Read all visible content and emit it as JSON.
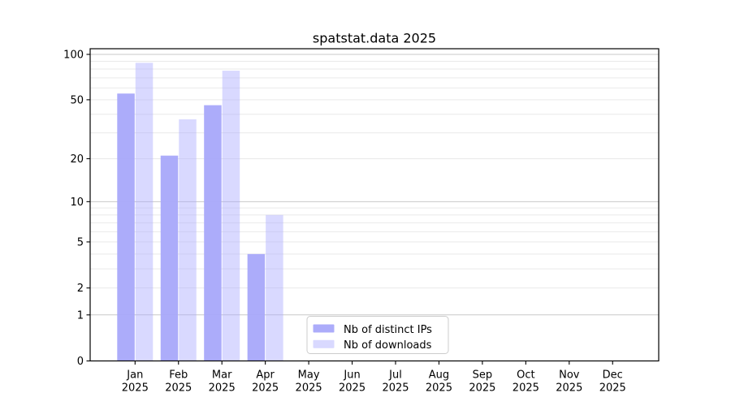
{
  "figure": {
    "title": "spatstat.data 2025"
  },
  "chart_data": {
    "type": "bar",
    "title": "spatstat.data 2025",
    "xlabel": "",
    "ylabel": "",
    "yscale": "log1p",
    "ylim": [
      0,
      100
    ],
    "grid": true,
    "legend_position": "lower center",
    "categories": [
      "Jan",
      "Feb",
      "Mar",
      "Apr",
      "May",
      "Jun",
      "Jul",
      "Aug",
      "Sep",
      "Oct",
      "Nov",
      "Dec"
    ],
    "category_year": "2025",
    "series": [
      {
        "name": "Nb of distinct IPs",
        "color": "#a8a8fa",
        "fill_opacity": 0.95,
        "values": [
          55,
          21,
          46,
          4,
          null,
          null,
          null,
          null,
          null,
          null,
          null,
          null
        ]
      },
      {
        "name": "Nb of downloads",
        "color": "#aaaaff",
        "fill_opacity": 0.45,
        "values": [
          88,
          37,
          78,
          8,
          null,
          null,
          null,
          null,
          null,
          null,
          null,
          null
        ]
      }
    ],
    "ytick_labels": [
      "100",
      "50",
      "20",
      "10",
      "5",
      "2",
      "1",
      "0"
    ],
    "major_gridlines": [
      1,
      10,
      100
    ],
    "minor_gridlines": [
      2,
      3,
      4,
      5,
      6,
      7,
      8,
      9,
      20,
      30,
      40,
      50,
      60,
      70,
      80,
      90
    ]
  },
  "colors": {
    "background": "#ffffff",
    "spine": "#000000",
    "major_grid": "#c8c8c8",
    "minor_grid": "#e9e9e9",
    "legend_border": "#cccccc",
    "text": "#000000"
  }
}
